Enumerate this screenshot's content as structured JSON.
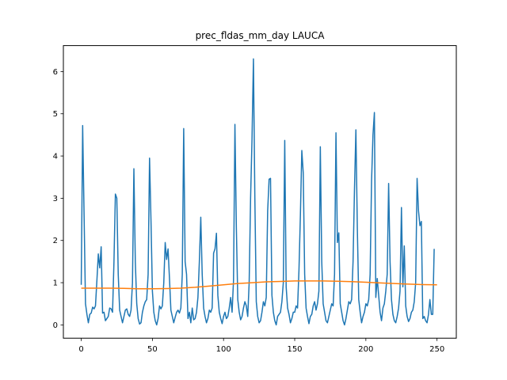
{
  "chart_data": {
    "type": "line",
    "title": "prec_fldas_mm_day LAUCA",
    "xlabel": "",
    "ylabel": "",
    "xlim": [
      -12.55,
      263.55
    ],
    "ylim": [
      -0.315,
      6.615
    ],
    "x_ticks": [
      0,
      50,
      100,
      150,
      200,
      250
    ],
    "y_ticks": [
      0,
      1,
      2,
      3,
      4,
      5,
      6
    ],
    "grid": false,
    "legend": "none",
    "series": [
      {
        "color": "#1f77b4",
        "points": [
          [
            0,
            0.95
          ],
          [
            1,
            4.72
          ],
          [
            2,
            2.6
          ],
          [
            3,
            0.5
          ],
          [
            4,
            0.25
          ],
          [
            5,
            0.05
          ],
          [
            6,
            0.25
          ],
          [
            7,
            0.28
          ],
          [
            8,
            0.42
          ],
          [
            9,
            0.38
          ],
          [
            10,
            0.45
          ],
          [
            11,
            1.05
          ],
          [
            12,
            1.68
          ],
          [
            13,
            1.35
          ],
          [
            14,
            1.85
          ],
          [
            15,
            0.28
          ],
          [
            16,
            0.3
          ],
          [
            17,
            0.1
          ],
          [
            18,
            0.15
          ],
          [
            19,
            0.2
          ],
          [
            20,
            0.4
          ],
          [
            21,
            0.38
          ],
          [
            22,
            0.3
          ],
          [
            23,
            1.5
          ],
          [
            24,
            3.1
          ],
          [
            25,
            3.0
          ],
          [
            26,
            1.2
          ],
          [
            27,
            0.35
          ],
          [
            28,
            0.2
          ],
          [
            29,
            0.05
          ],
          [
            30,
            0.2
          ],
          [
            31,
            0.35
          ],
          [
            32,
            0.38
          ],
          [
            33,
            0.25
          ],
          [
            34,
            0.2
          ],
          [
            35,
            0.35
          ],
          [
            36,
            1.0
          ],
          [
            37,
            3.7
          ],
          [
            38,
            1.5
          ],
          [
            39,
            0.5
          ],
          [
            40,
            0.15
          ],
          [
            41,
            0.02
          ],
          [
            42,
            0.05
          ],
          [
            43,
            0.3
          ],
          [
            44,
            0.45
          ],
          [
            45,
            0.55
          ],
          [
            46,
            0.6
          ],
          [
            47,
            1.2
          ],
          [
            48,
            3.95
          ],
          [
            49,
            2.5
          ],
          [
            50,
            0.8
          ],
          [
            51,
            0.3
          ],
          [
            52,
            0.1
          ],
          [
            53,
            0.0
          ],
          [
            54,
            0.15
          ],
          [
            55,
            0.45
          ],
          [
            56,
            0.38
          ],
          [
            57,
            0.45
          ],
          [
            58,
            1.0
          ],
          [
            59,
            1.95
          ],
          [
            60,
            1.55
          ],
          [
            61,
            1.8
          ],
          [
            62,
            1.1
          ],
          [
            63,
            0.35
          ],
          [
            64,
            0.2
          ],
          [
            65,
            0.05
          ],
          [
            66,
            0.18
          ],
          [
            67,
            0.3
          ],
          [
            68,
            0.35
          ],
          [
            69,
            0.28
          ],
          [
            70,
            0.4
          ],
          [
            71,
            1.2
          ],
          [
            72,
            4.65
          ],
          [
            73,
            1.5
          ],
          [
            74,
            1.2
          ],
          [
            75,
            0.15
          ],
          [
            76,
            0.3
          ],
          [
            77,
            0.05
          ],
          [
            78,
            0.4
          ],
          [
            79,
            0.12
          ],
          [
            80,
            0.15
          ],
          [
            81,
            0.3
          ],
          [
            82,
            0.65
          ],
          [
            83,
            1.5
          ],
          [
            84,
            2.55
          ],
          [
            85,
            1.2
          ],
          [
            86,
            0.4
          ],
          [
            87,
            0.2
          ],
          [
            88,
            0.05
          ],
          [
            89,
            0.15
          ],
          [
            90,
            0.35
          ],
          [
            91,
            0.3
          ],
          [
            92,
            0.4
          ],
          [
            93,
            1.7
          ],
          [
            94,
            1.8
          ],
          [
            95,
            2.17
          ],
          [
            96,
            0.7
          ],
          [
            97,
            0.3
          ],
          [
            98,
            0.15
          ],
          [
            99,
            0.03
          ],
          [
            100,
            0.2
          ],
          [
            101,
            0.3
          ],
          [
            102,
            0.15
          ],
          [
            103,
            0.2
          ],
          [
            104,
            0.4
          ],
          [
            105,
            0.65
          ],
          [
            106,
            0.3
          ],
          [
            107,
            1.05
          ],
          [
            108,
            4.75
          ],
          [
            109,
            2.3
          ],
          [
            110,
            0.6
          ],
          [
            111,
            0.3
          ],
          [
            112,
            0.12
          ],
          [
            113,
            0.2
          ],
          [
            114,
            0.4
          ],
          [
            115,
            0.55
          ],
          [
            116,
            0.45
          ],
          [
            117,
            0.2
          ],
          [
            118,
            1.0
          ],
          [
            119,
            3.0
          ],
          [
            120,
            4.4
          ],
          [
            121,
            6.3
          ],
          [
            122,
            3.0
          ],
          [
            123,
            0.55
          ],
          [
            124,
            0.2
          ],
          [
            125,
            0.05
          ],
          [
            126,
            0.1
          ],
          [
            127,
            0.3
          ],
          [
            128,
            0.55
          ],
          [
            129,
            0.45
          ],
          [
            130,
            0.65
          ],
          [
            131,
            2.7
          ],
          [
            132,
            3.45
          ],
          [
            133,
            3.47
          ],
          [
            134,
            0.7
          ],
          [
            135,
            0.3
          ],
          [
            136,
            0.1
          ],
          [
            137,
            0.0
          ],
          [
            138,
            0.2
          ],
          [
            139,
            0.25
          ],
          [
            140,
            0.3
          ],
          [
            141,
            0.55
          ],
          [
            142,
            1.0
          ],
          [
            143,
            4.37
          ],
          [
            144,
            0.9
          ],
          [
            145,
            0.4
          ],
          [
            146,
            0.25
          ],
          [
            147,
            0.05
          ],
          [
            148,
            0.15
          ],
          [
            149,
            0.3
          ],
          [
            150,
            0.3
          ],
          [
            151,
            0.45
          ],
          [
            152,
            0.4
          ],
          [
            153,
            1.3
          ],
          [
            154,
            2.6
          ],
          [
            155,
            4.13
          ],
          [
            156,
            3.6
          ],
          [
            157,
            1.2
          ],
          [
            158,
            0.4
          ],
          [
            159,
            0.2
          ],
          [
            160,
            0.03
          ],
          [
            161,
            0.2
          ],
          [
            162,
            0.25
          ],
          [
            163,
            0.45
          ],
          [
            164,
            0.55
          ],
          [
            165,
            0.35
          ],
          [
            166,
            0.5
          ],
          [
            167,
            0.8
          ],
          [
            168,
            4.22
          ],
          [
            169,
            1.5
          ],
          [
            170,
            0.5
          ],
          [
            171,
            0.3
          ],
          [
            172,
            0.1
          ],
          [
            173,
            0.05
          ],
          [
            174,
            0.2
          ],
          [
            175,
            0.35
          ],
          [
            176,
            0.5
          ],
          [
            177,
            0.45
          ],
          [
            178,
            1.2
          ],
          [
            179,
            4.55
          ],
          [
            180,
            1.95
          ],
          [
            181,
            2.18
          ],
          [
            182,
            0.5
          ],
          [
            183,
            0.3
          ],
          [
            184,
            0.1
          ],
          [
            185,
            0.0
          ],
          [
            186,
            0.15
          ],
          [
            187,
            0.35
          ],
          [
            188,
            0.55
          ],
          [
            189,
            0.5
          ],
          [
            190,
            0.6
          ],
          [
            191,
            1.5
          ],
          [
            192,
            3.2
          ],
          [
            193,
            4.62
          ],
          [
            194,
            2.3
          ],
          [
            195,
            0.6
          ],
          [
            196,
            0.3
          ],
          [
            197,
            0.05
          ],
          [
            198,
            0.2
          ],
          [
            199,
            0.3
          ],
          [
            200,
            0.5
          ],
          [
            201,
            0.45
          ],
          [
            202,
            0.6
          ],
          [
            203,
            1.2
          ],
          [
            204,
            3.4
          ],
          [
            205,
            4.5
          ],
          [
            206,
            5.03
          ],
          [
            207,
            0.65
          ],
          [
            208,
            1.1
          ],
          [
            209,
            0.7
          ],
          [
            210,
            0.3
          ],
          [
            211,
            0.1
          ],
          [
            212,
            0.4
          ],
          [
            213,
            0.5
          ],
          [
            214,
            0.8
          ],
          [
            215,
            1.2
          ],
          [
            216,
            3.35
          ],
          [
            217,
            1.5
          ],
          [
            218,
            0.6
          ],
          [
            219,
            0.25
          ],
          [
            220,
            0.1
          ],
          [
            221,
            0.05
          ],
          [
            222,
            0.2
          ],
          [
            223,
            0.4
          ],
          [
            224,
            0.8
          ],
          [
            225,
            2.78
          ],
          [
            226,
            0.9
          ],
          [
            227,
            1.87
          ],
          [
            228,
            0.45
          ],
          [
            229,
            0.2
          ],
          [
            230,
            0.08
          ],
          [
            231,
            0.15
          ],
          [
            232,
            0.3
          ],
          [
            233,
            0.35
          ],
          [
            234,
            0.55
          ],
          [
            235,
            1.0
          ],
          [
            236,
            3.47
          ],
          [
            237,
            2.7
          ],
          [
            238,
            2.35
          ],
          [
            239,
            2.45
          ],
          [
            240,
            0.15
          ],
          [
            241,
            0.2
          ],
          [
            242,
            0.1
          ],
          [
            243,
            0.05
          ],
          [
            244,
            0.25
          ],
          [
            245,
            0.6
          ],
          [
            246,
            0.25
          ],
          [
            247,
            0.25
          ],
          [
            248,
            1.8
          ]
        ]
      },
      {
        "color": "#ff7f0e",
        "points": [
          [
            0,
            0.87
          ],
          [
            10,
            0.87
          ],
          [
            20,
            0.87
          ],
          [
            30,
            0.865
          ],
          [
            40,
            0.855
          ],
          [
            50,
            0.855
          ],
          [
            60,
            0.86
          ],
          [
            70,
            0.87
          ],
          [
            80,
            0.89
          ],
          [
            90,
            0.92
          ],
          [
            100,
            0.95
          ],
          [
            110,
            0.98
          ],
          [
            120,
            1.0
          ],
          [
            130,
            1.02
          ],
          [
            140,
            1.03
          ],
          [
            150,
            1.04
          ],
          [
            160,
            1.04
          ],
          [
            170,
            1.04
          ],
          [
            180,
            1.035
          ],
          [
            190,
            1.025
          ],
          [
            200,
            1.01
          ],
          [
            210,
            0.995
          ],
          [
            220,
            0.98
          ],
          [
            230,
            0.965
          ],
          [
            240,
            0.955
          ],
          [
            250,
            0.95
          ]
        ]
      }
    ]
  }
}
